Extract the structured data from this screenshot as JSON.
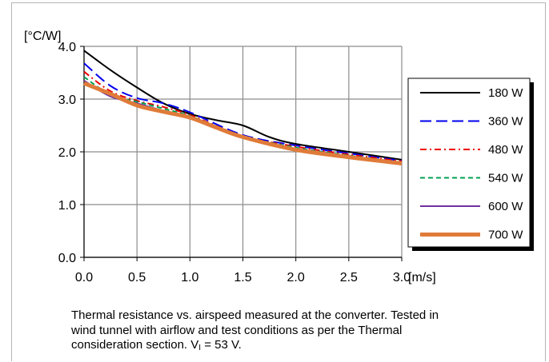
{
  "chart_data": {
    "type": "line",
    "ylabel": "[°C/W]",
    "xlabel": "[m/s]",
    "xlim": [
      0.0,
      3.0
    ],
    "ylim": [
      0.0,
      4.0
    ],
    "x_ticks": [
      "0.0",
      "0.5",
      "1.0",
      "1.5",
      "2.0",
      "2.5",
      "3.0"
    ],
    "y_ticks": [
      "0.0",
      "1.0",
      "2.0",
      "3.0",
      "4.0"
    ],
    "grid": true,
    "legend_position": "right",
    "series": [
      {
        "name": "180 W",
        "color": "#000000",
        "dash": "solid",
        "x": [
          0.0,
          0.25,
          0.5,
          0.75,
          1.0,
          1.25,
          1.5,
          1.75,
          2.0,
          2.5,
          3.0
        ],
        "y": [
          3.92,
          3.55,
          3.22,
          2.92,
          2.72,
          2.6,
          2.5,
          2.28,
          2.15,
          2.0,
          1.85
        ]
      },
      {
        "name": "360 W",
        "color": "#0000ee",
        "dash": "longdash",
        "x": [
          0.0,
          0.25,
          0.5,
          0.75,
          1.0,
          1.5,
          2.0,
          2.5,
          3.0
        ],
        "y": [
          3.68,
          3.25,
          3.02,
          2.92,
          2.75,
          2.32,
          2.12,
          1.97,
          1.83
        ]
      },
      {
        "name": "480 W",
        "color": "#ee0000",
        "dash": "dashdot",
        "x": [
          0.0,
          0.25,
          0.5,
          0.75,
          1.0,
          1.5,
          2.0,
          2.5,
          3.0
        ],
        "y": [
          3.52,
          3.15,
          2.97,
          2.85,
          2.7,
          2.3,
          2.1,
          1.95,
          1.82
        ]
      },
      {
        "name": "540 W",
        "color": "#00a050",
        "dash": "dash",
        "x": [
          0.0,
          0.25,
          0.5,
          0.75,
          1.0,
          1.5,
          2.0,
          2.5,
          3.0
        ],
        "y": [
          3.42,
          3.08,
          2.95,
          2.82,
          2.68,
          2.3,
          2.08,
          1.93,
          1.8
        ]
      },
      {
        "name": "600 W",
        "color": "#7030a0",
        "dash": "solid",
        "x": [
          0.0,
          0.25,
          0.5,
          0.75,
          1.0,
          1.5,
          2.0,
          2.5,
          3.0
        ],
        "y": [
          3.35,
          3.05,
          2.92,
          2.78,
          2.66,
          2.28,
          2.06,
          1.92,
          1.79
        ]
      },
      {
        "name": "700 W",
        "color": "#e07b39",
        "dash": "thick",
        "x": [
          0.0,
          0.25,
          0.5,
          0.75,
          1.0,
          1.25,
          1.5,
          2.0,
          2.5,
          3.0
        ],
        "y": [
          3.3,
          3.1,
          2.88,
          2.76,
          2.65,
          2.46,
          2.28,
          2.04,
          1.9,
          1.78
        ]
      }
    ]
  },
  "caption": {
    "line1": "Thermal resistance vs. airspeed measured at the converter. Tested in",
    "line2": "wind tunnel with airflow and test conditions as per the Thermal",
    "line3_prefix": "consideration section. V",
    "line3_sub": "I",
    "line3_suffix": " = 53 V."
  }
}
